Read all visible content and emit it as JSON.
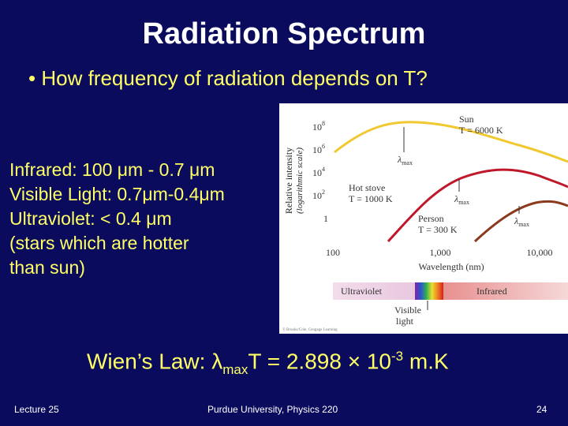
{
  "title": "Radiation Spectrum",
  "bullet": "• How frequency of radiation depends on T?",
  "left_lines": [
    "Infrared: 100 μm - 0.7 μm",
    "Visible Light: 0.7μm-0.4μm",
    "Ultraviolet: < 0.4 μm",
    "(stars which are hotter",
    "than sun)"
  ],
  "figure": {
    "ylabel": "Relative intensity",
    "ylabel2": "(logarithmic scale)",
    "yticks": [
      "10",
      "10",
      "10",
      "10",
      "1"
    ],
    "yexps": [
      "8",
      "6",
      "4",
      "2"
    ],
    "xticks": [
      "100",
      "1,000",
      "10,000"
    ],
    "xlabel": "Wavelength (nm)",
    "sun_label": "Sun",
    "sun_temp": "T = 6000 K",
    "stove_label": "Hot stove",
    "stove_temp": "T = 1000 K",
    "person_label": "Person",
    "person_temp": "T = 300 K",
    "lambda": "λ",
    "max": "max",
    "uv": "Ultraviolet",
    "ir": "Infrared",
    "visible1": "Visible",
    "visible2": "light",
    "copyright": "© Brooks/Cole, Cengage Learning",
    "colors": {
      "sun": "#f0c830",
      "stove": "#c0182a",
      "person": "#8b3a1e"
    }
  },
  "wien": {
    "prefix": "Wien’s Law: ",
    "lambda": "λ",
    "sub": "max",
    "mid": "T = 2.898 × 10",
    "sup": "-3",
    "unit": " m.K"
  },
  "footer": {
    "left": "Lecture 25",
    "center": "Purdue University, Physics 220",
    "right": "24"
  }
}
